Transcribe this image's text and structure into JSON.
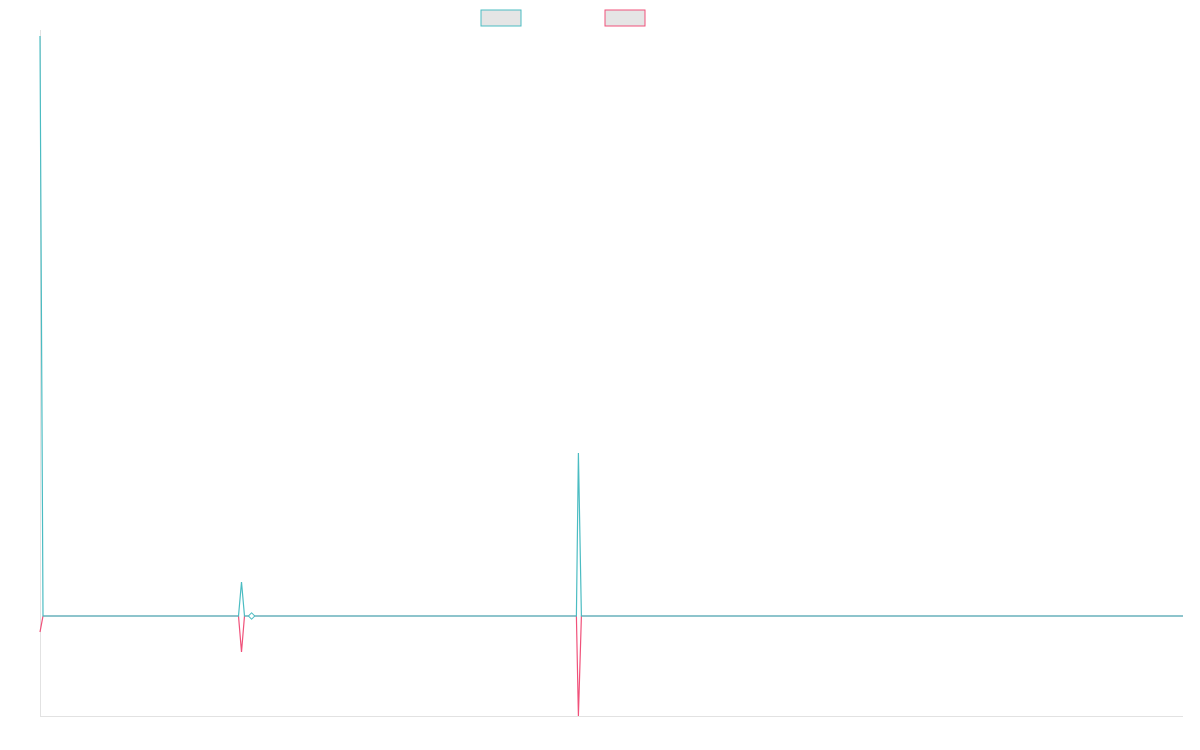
{
  "chart_data": {
    "type": "line",
    "title": "",
    "xlabel": "",
    "ylabel": "",
    "legend": "top-center",
    "grid": false,
    "xlim": [
      0,
      1140
    ],
    "ylim": [
      -100,
      580
    ],
    "series": [
      {
        "color": "#4bbcc2",
        "points": [
          [
            0,
            580
          ],
          [
            3,
            0
          ],
          [
            198,
            0
          ],
          [
            201,
            34
          ],
          [
            204,
            0
          ],
          [
            535,
            0
          ],
          [
            537,
            163
          ],
          [
            540,
            0
          ],
          [
            1140,
            0
          ]
        ]
      },
      {
        "color": "#f0517a",
        "points": [
          [
            0,
            -16
          ],
          [
            3,
            0
          ],
          [
            198,
            0
          ],
          [
            201,
            -36
          ],
          [
            204,
            0
          ],
          [
            535,
            0
          ],
          [
            537,
            -100
          ],
          [
            540,
            0
          ],
          [
            1140,
            0
          ]
        ]
      }
    ],
    "marker": {
      "x": 211,
      "y": 0
    }
  }
}
